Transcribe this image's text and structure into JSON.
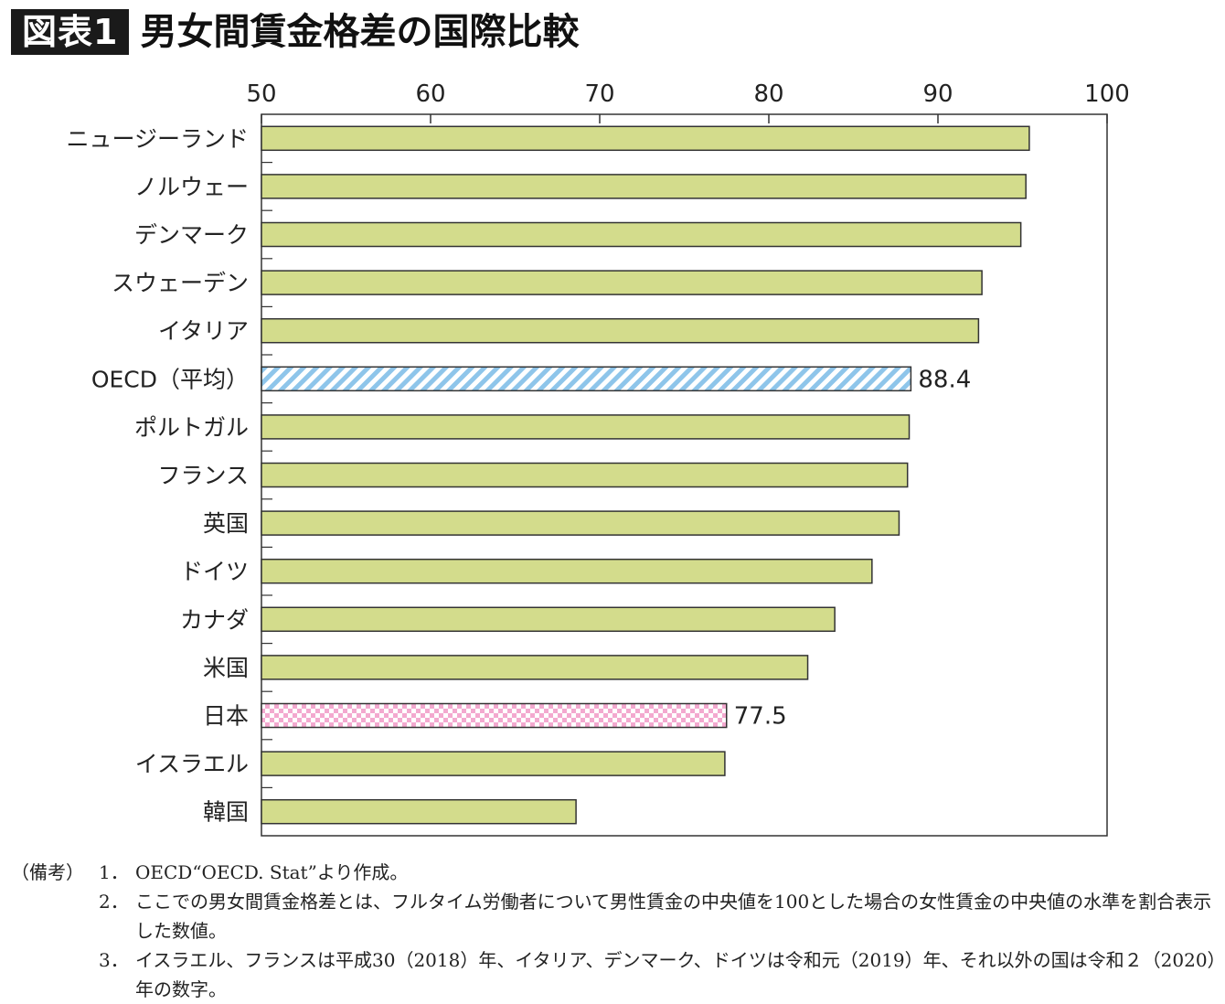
{
  "header": {
    "badge": "図表1",
    "title": "男女間賃金格差の国際比較"
  },
  "chart_data": {
    "type": "bar",
    "orientation": "horizontal",
    "title": "男女間賃金格差の国際比較",
    "xlim": [
      50,
      100
    ],
    "xticks": [
      "50",
      "60",
      "70",
      "80",
      "90",
      "100"
    ],
    "grid": false,
    "categories": [
      "ニュージーランド",
      "ノルウェー",
      "デンマーク",
      "スウェーデン",
      "イタリア",
      "OECD（平均）",
      "ポルトガル",
      "フランス",
      "英国",
      "ドイツ",
      "カナダ",
      "米国",
      "日本",
      "イスラエル",
      "韓国"
    ],
    "values": [
      95.4,
      95.2,
      94.9,
      92.6,
      92.4,
      88.4,
      88.3,
      88.2,
      87.7,
      86.1,
      83.9,
      82.3,
      77.5,
      77.4,
      68.6
    ],
    "styles": [
      "solid",
      "solid",
      "solid",
      "solid",
      "solid",
      "hatch",
      "solid",
      "solid",
      "solid",
      "solid",
      "solid",
      "solid",
      "check",
      "solid",
      "solid"
    ],
    "data_labels": [
      "",
      "",
      "",
      "",
      "",
      "88.4",
      "",
      "",
      "",
      "",
      "",
      "",
      "77.5",
      "",
      ""
    ],
    "colors": {
      "bar": "#d3dc8c",
      "hatch_stripe": "#8ec5ea",
      "check": "#f3a9cf",
      "outline": "#333333"
    }
  },
  "notes": {
    "lead": "（備考）",
    "items": [
      {
        "num": "1．",
        "text": "OECD“OECD. Stat”より作成。"
      },
      {
        "num": "2．",
        "text": "ここでの男女間賃金格差とは、フルタイム労働者について男性賃金の中央値を100とした場合の女性賃金の中央値の水準を割合表示した数値。"
      },
      {
        "num": "3．",
        "text": "イスラエル、フランスは平成30（2018）年、イタリア、デンマーク、ドイツは令和元（2019）年、それ以外の国は令和２（2020）年の数字。"
      }
    ]
  }
}
